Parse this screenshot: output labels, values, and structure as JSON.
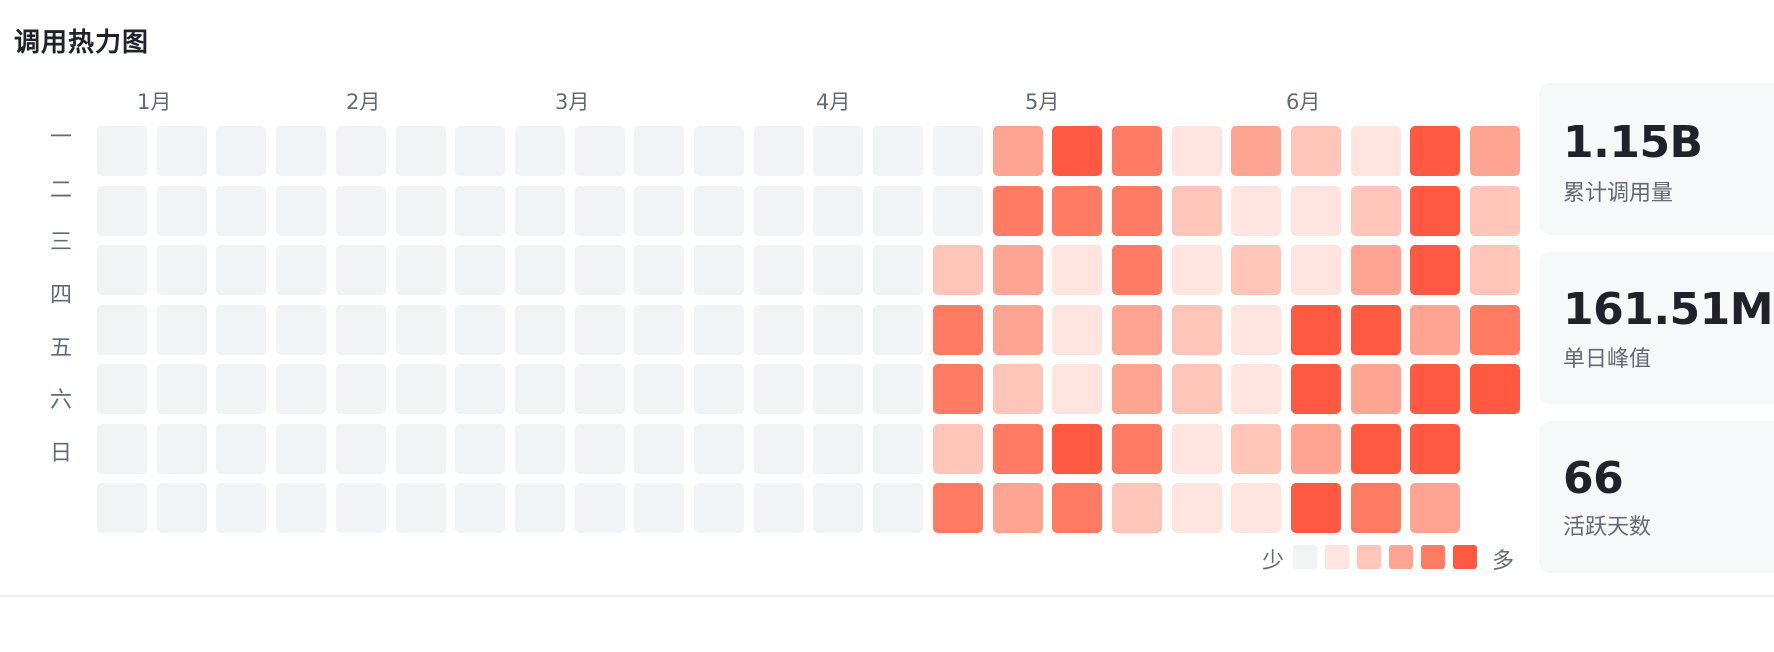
{
  "card": {
    "title": "调用热力图"
  },
  "heatmap": {
    "months": [
      "1月",
      "2月",
      "3月",
      "4月",
      "5月",
      "6月"
    ],
    "weekdays": [
      "一",
      "二",
      "三",
      "四",
      "五",
      "六",
      "日"
    ],
    "levels_by_week": [
      [
        0,
        0,
        0,
        0,
        0,
        0,
        0
      ],
      [
        0,
        0,
        0,
        0,
        0,
        0,
        0
      ],
      [
        0,
        0,
        0,
        0,
        0,
        0,
        0
      ],
      [
        0,
        0,
        0,
        0,
        0,
        0,
        0
      ],
      [
        0,
        0,
        0,
        0,
        0,
        0,
        0
      ],
      [
        0,
        0,
        0,
        0,
        0,
        0,
        0
      ],
      [
        0,
        0,
        0,
        0,
        0,
        0,
        0
      ],
      [
        0,
        0,
        0,
        0,
        0,
        0,
        0
      ],
      [
        0,
        0,
        0,
        0,
        0,
        0,
        0
      ],
      [
        0,
        0,
        0,
        0,
        0,
        0,
        0
      ],
      [
        0,
        0,
        0,
        0,
        0,
        0,
        0
      ],
      [
        0,
        0,
        0,
        0,
        0,
        0,
        0
      ],
      [
        0,
        0,
        0,
        0,
        0,
        0,
        0
      ],
      [
        0,
        0,
        0,
        0,
        0,
        0,
        0
      ],
      [
        0,
        0,
        2,
        4,
        4,
        2,
        4
      ],
      [
        3,
        4,
        3,
        3,
        2,
        4,
        3
      ],
      [
        5,
        4,
        1,
        1,
        1,
        5,
        4
      ],
      [
        4,
        4,
        4,
        3,
        3,
        4,
        2
      ],
      [
        1,
        2,
        1,
        2,
        2,
        1,
        1
      ],
      [
        3,
        1,
        2,
        1,
        1,
        2,
        1
      ],
      [
        2,
        1,
        1,
        5,
        5,
        3,
        5
      ],
      [
        1,
        2,
        3,
        5,
        3,
        5,
        4
      ],
      [
        5,
        5,
        5,
        3,
        5,
        5,
        3
      ],
      [
        3,
        2,
        2,
        4,
        5,
        null,
        null
      ]
    ],
    "legend": {
      "low_label": "少",
      "high_label": "多",
      "colors": [
        "#f2f3f5",
        "#ffe4df",
        "#ffc5b9",
        "#ffa392",
        "#ff7b63",
        "#ff5a41"
      ]
    }
  },
  "stats": [
    {
      "value": "1.15B",
      "label": "累计调用量"
    },
    {
      "value": "161.51M",
      "label": "单日峰值"
    },
    {
      "value": "66",
      "label": "活跃天数"
    }
  ]
}
